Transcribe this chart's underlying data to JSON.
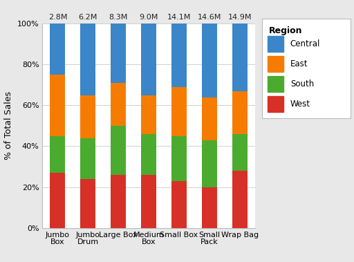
{
  "categories": [
    "Jumbo\nBox",
    "Jumbo\nDrum",
    "Large Box",
    "Medium\nBox",
    "Small Box",
    "Small\nPack",
    "Wrap Bag"
  ],
  "totals": [
    "2.8M",
    "6.2M",
    "8.3M",
    "9.0M",
    "14.1M",
    "14.6M",
    "14.9M"
  ],
  "regions": [
    "West",
    "South",
    "East",
    "Central"
  ],
  "colors": [
    "#d73027",
    "#4aab2e",
    "#f57c00",
    "#3a86c8"
  ],
  "values": {
    "West": [
      27,
      24,
      26,
      26,
      23,
      20,
      28
    ],
    "South": [
      18,
      20,
      24,
      20,
      22,
      23,
      18
    ],
    "East": [
      30,
      21,
      21,
      19,
      24,
      21,
      21
    ],
    "Central": [
      25,
      35,
      29,
      35,
      31,
      36,
      33
    ]
  },
  "ylabel": "% of Total Sales",
  "legend_title": "Region",
  "legend_entries": [
    "Central",
    "East",
    "South",
    "West"
  ],
  "legend_colors": [
    "#3a86c8",
    "#f57c00",
    "#4aab2e",
    "#d73027"
  ],
  "ylim": [
    0,
    100
  ],
  "yticks": [
    0,
    20,
    40,
    60,
    80,
    100
  ],
  "ytick_labels": [
    "0%",
    "20%",
    "40%",
    "60%",
    "80%",
    "100%"
  ],
  "bar_width": 0.5,
  "fig_bgcolor": "#e8e8e8",
  "plot_bgcolor": "#ffffff",
  "legend_bgcolor": "#ffffff",
  "border_color": "#bbbbbb",
  "total_fontsize": 8,
  "axis_fontsize": 8,
  "ylabel_fontsize": 9
}
